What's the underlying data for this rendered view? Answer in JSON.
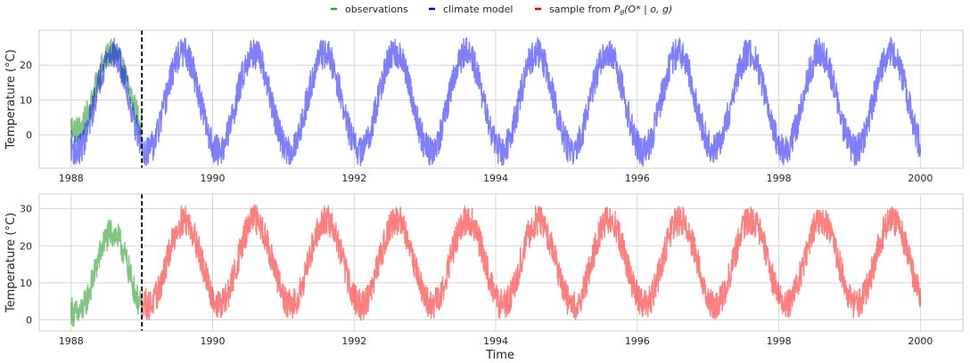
{
  "legend": {
    "items": [
      {
        "label": "observations",
        "color": "#2ca02c"
      },
      {
        "label": "climate model",
        "color": "#0000ff"
      },
      {
        "label": "sample from ",
        "math": "P",
        "sub": "θ",
        "args": "(O* | o, g)",
        "color": "#ff0000"
      }
    ]
  },
  "chart_data": [
    {
      "type": "line",
      "panel": "top",
      "title": "",
      "xlabel": "",
      "ylabel": "Temperature (°C)",
      "xlim": [
        1987.55,
        2000.6
      ],
      "ylim": [
        -9.5,
        30
      ],
      "xticks": [
        1988,
        1990,
        1992,
        1994,
        1996,
        1998,
        2000
      ],
      "yticks": [
        0,
        10,
        20
      ],
      "grid": true,
      "vline": {
        "x": 1989.0,
        "style": "dashed",
        "color": "#000000"
      },
      "series": [
        {
          "name": "observations",
          "color": "#2ca02c",
          "alpha": 0.6,
          "x_range": [
            1988.0,
            1989.0
          ],
          "mean": 12.5,
          "amplitude": 11.0,
          "peak_year_fraction": 0.58,
          "noise": 2.5
        },
        {
          "name": "climate model",
          "color": "#0000ff",
          "alpha": 0.5,
          "x_range": [
            1988.0,
            2000.0
          ],
          "mean": 9.5,
          "amplitude": 14.0,
          "peak_year_fraction": 0.58,
          "noise": 2.8
        }
      ]
    },
    {
      "type": "line",
      "panel": "bottom",
      "title": "",
      "xlabel": "Time",
      "ylabel": "Temperature (°C)",
      "xlim": [
        1987.55,
        2000.6
      ],
      "ylim": [
        -3,
        34
      ],
      "xticks": [
        1988,
        1990,
        1992,
        1994,
        1996,
        1998,
        2000
      ],
      "yticks": [
        0,
        10,
        20,
        30
      ],
      "grid": true,
      "vline": {
        "x": 1989.0,
        "style": "dashed",
        "color": "#000000"
      },
      "series": [
        {
          "name": "observations",
          "color": "#2ca02c",
          "alpha": 0.6,
          "x_range": [
            1988.0,
            1989.0
          ],
          "mean": 12.5,
          "amplitude": 11.0,
          "peak_year_fraction": 0.58,
          "noise": 2.5
        },
        {
          "name": "sample from P_θ(O* | o, g)",
          "color": "#ff0000",
          "alpha": 0.5,
          "x_range": [
            1989.0,
            2000.0
          ],
          "mean": 15.5,
          "amplitude": 11.5,
          "peak_year_fraction": 0.6,
          "noise": 2.6
        }
      ]
    }
  ]
}
